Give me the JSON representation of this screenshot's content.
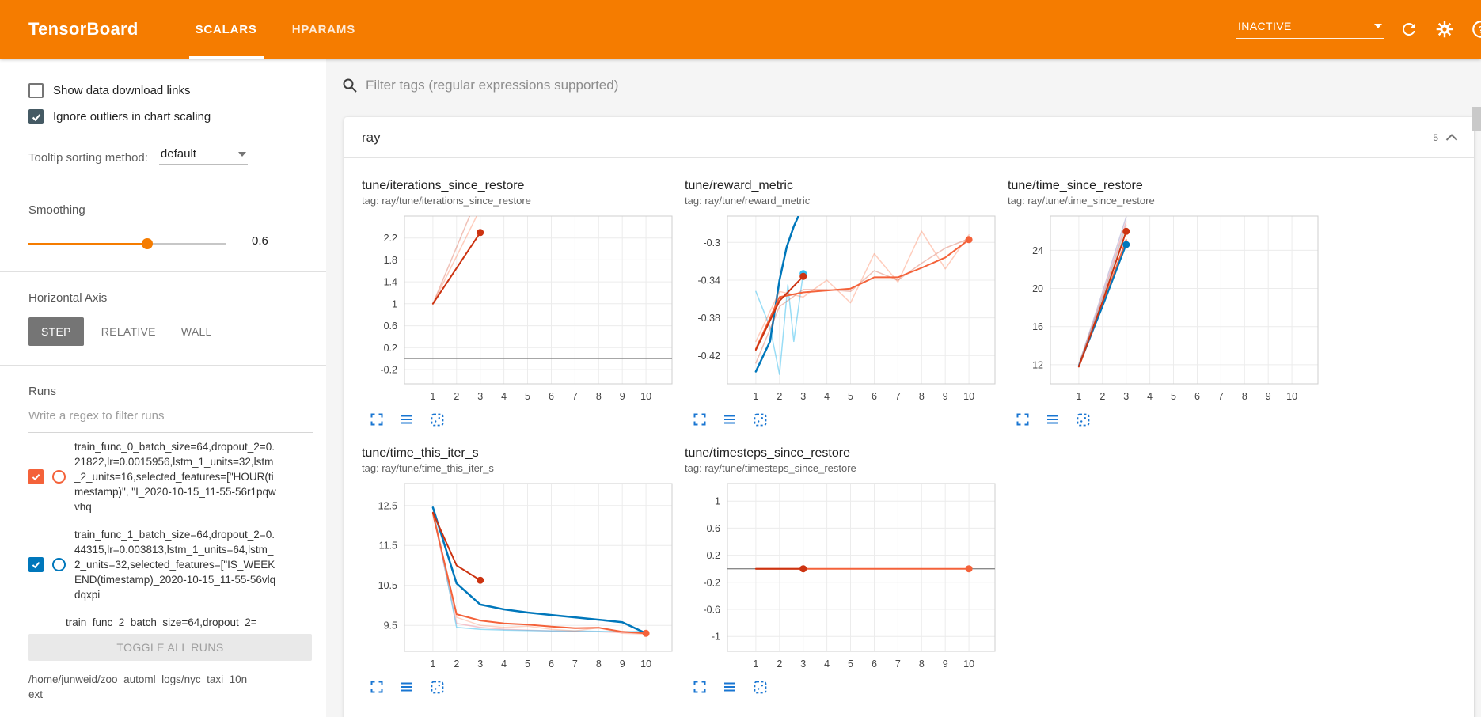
{
  "header": {
    "title": "TensorBoard",
    "tabs": [
      {
        "label": "SCALARS",
        "active": true
      },
      {
        "label": "HPARAMS",
        "active": false
      }
    ],
    "status": "INACTIVE",
    "accent_color": "#f57c00"
  },
  "sidebar": {
    "checkboxes": [
      {
        "label": "Show data download links",
        "checked": false
      },
      {
        "label": "Ignore outliers in chart scaling",
        "checked": true
      }
    ],
    "tooltip_sorting": {
      "label": "Tooltip sorting method:",
      "value": "default"
    },
    "smoothing": {
      "label": "Smoothing",
      "value": "0.6",
      "fraction": 0.6
    },
    "horizontal_axis": {
      "label": "Horizontal Axis",
      "options": [
        "STEP",
        "RELATIVE",
        "WALL"
      ],
      "selected": "STEP"
    },
    "runs": {
      "label": "Runs",
      "filter_placeholder": "Write a regex to filter runs",
      "items": [
        {
          "label": "train_func_0_batch_size=64,dropout_2=0.21822,lr=0.0015956,lstm_1_units=32,lstm_2_units=16,selected_features=[\"HOUR(timestamp)\", \"I_2020-10-15_11-55-56r1pqwvhq",
          "checked": true,
          "color": "#f4623a"
        },
        {
          "label": "train_func_1_batch_size=64,dropout_2=0.44315,lr=0.003813,lstm_1_units=64,lstm_2_units=32,selected_features=[\"IS_WEEKEND(timestamp)_2020-10-15_11-55-56vlqdqxpi",
          "checked": true,
          "color": "#0077bb"
        },
        {
          "label": "train_func_2_batch_size=64,dropout_2="
        }
      ],
      "toggle_all_label": "TOGGLE ALL RUNS",
      "log_path": "/home/junweid/zoo_automl_logs/nyc_taxi_10next"
    }
  },
  "main": {
    "filter_placeholder": "Filter tags (regular expressions supported)",
    "section": {
      "title": "ray",
      "count": "5"
    }
  },
  "chart_data": [
    {
      "type": "line",
      "title": "tune/iterations_since_restore",
      "tag": "tag: ray/tune/iterations_since_restore",
      "xlim": [
        -0.2,
        11.1
      ],
      "ylim": [
        -0.46,
        2.6
      ],
      "xticks": [
        1,
        2,
        3,
        4,
        5,
        6,
        7,
        8,
        9,
        10
      ],
      "yticks": [
        -0.2,
        0.2,
        0.6,
        1,
        1.4,
        1.8,
        2.2
      ],
      "series": [
        {
          "name": "zero-baseline",
          "color": "#8a8a8a",
          "width": 1.4,
          "points": [
            [
              -0.2,
              0
            ],
            [
              11.1,
              0
            ]
          ]
        },
        {
          "name": "run0-raw",
          "color": "#ff7043",
          "opacity": 0.35,
          "width": 1.5,
          "points": [
            [
              1,
              1
            ],
            [
              2.85,
              2.6
            ]
          ]
        },
        {
          "name": "run2-raw",
          "color": "#cc3311",
          "opacity": 0.3,
          "width": 1.5,
          "points": [
            [
              1,
              1
            ],
            [
              2.55,
              2.6
            ]
          ]
        },
        {
          "name": "run2-smoothed",
          "color": "#cc3311",
          "width": 2,
          "dot": true,
          "points": [
            [
              1,
              1
            ],
            [
              3,
              2.3
            ]
          ]
        }
      ]
    },
    {
      "type": "line",
      "title": "tune/reward_metric",
      "tag": "tag: ray/tune/reward_metric",
      "xlim": [
        -0.2,
        11.1
      ],
      "ylim": [
        -0.45,
        -0.272
      ],
      "xticks": [
        1,
        2,
        3,
        4,
        5,
        6,
        7,
        8,
        9,
        10
      ],
      "yticks": [
        -0.42,
        -0.38,
        -0.34,
        -0.3
      ],
      "series": [
        {
          "name": "run1-raw",
          "color": "#33bbee",
          "opacity": 0.5,
          "width": 1.5,
          "dot": true,
          "points": [
            [
              1,
              -0.352
            ],
            [
              1.6,
              -0.39
            ],
            [
              2,
              -0.44
            ],
            [
              2.35,
              -0.345
            ],
            [
              2.6,
              -0.405
            ],
            [
              3,
              -0.333
            ]
          ]
        },
        {
          "name": "run1-smoothed",
          "color": "#0077bb",
          "width": 2.5,
          "points": [
            [
              1,
              -0.437
            ],
            [
              1.6,
              -0.405
            ],
            [
              2,
              -0.34
            ],
            [
              2.3,
              -0.305
            ],
            [
              2.6,
              -0.283
            ],
            [
              2.8,
              -0.272
            ]
          ]
        },
        {
          "name": "run0-raw-a",
          "color": "#ff7043",
          "opacity": 0.35,
          "width": 1.5,
          "points": [
            [
              1,
              -0.405
            ],
            [
              2,
              -0.352
            ],
            [
              3,
              -0.358
            ],
            [
              4,
              -0.34
            ],
            [
              5,
              -0.364
            ],
            [
              6,
              -0.312
            ],
            [
              7,
              -0.342
            ],
            [
              8,
              -0.288
            ],
            [
              9,
              -0.328
            ],
            [
              10,
              -0.292
            ]
          ]
        },
        {
          "name": "run0-raw-b",
          "color": "#cc3311",
          "opacity": 0.3,
          "width": 1.5,
          "points": [
            [
              1,
              -0.428
            ],
            [
              2,
              -0.368
            ],
            [
              3,
              -0.35
            ],
            [
              4,
              -0.35
            ],
            [
              5,
              -0.352
            ],
            [
              6,
              -0.33
            ],
            [
              7,
              -0.34
            ],
            [
              8,
              -0.322
            ],
            [
              9,
              -0.306
            ],
            [
              10,
              -0.296
            ]
          ]
        },
        {
          "name": "run0-smoothed",
          "color": "#f4623a",
          "width": 2,
          "dot": true,
          "points": [
            [
              1,
              -0.413
            ],
            [
              2,
              -0.358
            ],
            [
              3,
              -0.353
            ],
            [
              4,
              -0.351
            ],
            [
              5,
              -0.349
            ],
            [
              6,
              -0.337
            ],
            [
              7,
              -0.337
            ],
            [
              8,
              -0.327
            ],
            [
              9,
              -0.316
            ],
            [
              10,
              -0.297
            ]
          ]
        },
        {
          "name": "run2-smoothed",
          "color": "#cc3311",
          "width": 2,
          "dot": true,
          "points": [
            [
              1,
              -0.414
            ],
            [
              2,
              -0.362
            ],
            [
              3,
              -0.336
            ]
          ]
        }
      ]
    },
    {
      "type": "line",
      "title": "tune/time_since_restore",
      "tag": "tag: ray/tune/time_since_restore",
      "xlim": [
        -0.2,
        11.1
      ],
      "ylim": [
        10,
        27.6
      ],
      "xticks": [
        1,
        2,
        3,
        4,
        5,
        6,
        7,
        8,
        9,
        10
      ],
      "yticks": [
        12,
        16,
        20,
        24
      ],
      "series": [
        {
          "name": "raw-a",
          "color": "#9e9ac8",
          "opacity": 0.5,
          "width": 1.5,
          "points": [
            [
              1,
              12
            ],
            [
              2,
              19.6
            ],
            [
              3,
              27.5
            ]
          ]
        },
        {
          "name": "raw-b",
          "color": "#ee7788",
          "opacity": 0.45,
          "width": 1.5,
          "points": [
            [
              1,
              12
            ],
            [
              2,
              19.2
            ],
            [
              3,
              27
            ]
          ]
        },
        {
          "name": "raw-c",
          "color": "#999999",
          "opacity": 0.45,
          "width": 1.5,
          "points": [
            [
              1,
              12.1
            ],
            [
              2,
              19
            ],
            [
              3,
              26.6
            ]
          ]
        },
        {
          "name": "run0-smoothed",
          "color": "#f4623a",
          "width": 2,
          "points": [
            [
              1,
              11.8
            ],
            [
              2,
              18.2
            ],
            [
              3,
              25.1
            ]
          ]
        },
        {
          "name": "run1-smoothed",
          "color": "#0077bb",
          "width": 2,
          "dot": true,
          "points": [
            [
              1,
              11.9
            ],
            [
              2,
              18.1
            ],
            [
              3,
              24.6
            ]
          ]
        },
        {
          "name": "run2-smoothed",
          "color": "#cc3311",
          "width": 2,
          "dot": true,
          "points": [
            [
              1,
              11.8
            ],
            [
              2,
              18.6
            ],
            [
              3,
              26
            ]
          ]
        }
      ]
    },
    {
      "type": "line",
      "title": "tune/time_this_iter_s",
      "tag": "tag: ray/tune/time_this_iter_s",
      "xlim": [
        -0.2,
        11.1
      ],
      "ylim": [
        8.85,
        13.05
      ],
      "xticks": [
        1,
        2,
        3,
        4,
        5,
        6,
        7,
        8,
        9,
        10
      ],
      "yticks": [
        9.5,
        10.5,
        11.5,
        12.5
      ],
      "series": [
        {
          "name": "raw-pink",
          "color": "#ee99aa",
          "opacity": 0.55,
          "width": 1.5,
          "points": [
            [
              1,
              12.3
            ],
            [
              2,
              9.55
            ],
            [
              3,
              9.45
            ],
            [
              4,
              9.4
            ],
            [
              5,
              9.38
            ],
            [
              6,
              9.36
            ],
            [
              7,
              9.35
            ],
            [
              8,
              9.34
            ],
            [
              9,
              9.32
            ],
            [
              10,
              9.3
            ]
          ]
        },
        {
          "name": "raw-cyan",
          "color": "#33bbee",
          "opacity": 0.5,
          "width": 1.5,
          "points": [
            [
              1,
              12.45
            ],
            [
              2,
              9.45
            ],
            [
              3,
              9.4
            ],
            [
              4,
              9.38
            ],
            [
              5,
              9.37
            ],
            [
              6,
              9.36
            ],
            [
              7,
              9.36
            ],
            [
              8,
              9.35
            ],
            [
              9,
              9.34
            ],
            [
              10,
              9.35
            ]
          ]
        },
        {
          "name": "raw-orange",
          "color": "#ff7043",
          "opacity": 0.3,
          "width": 1.5,
          "points": [
            [
              1,
              12.3
            ],
            [
              2,
              9.7
            ],
            [
              3,
              9.5
            ],
            [
              4,
              9.45
            ],
            [
              5,
              9.48
            ],
            [
              6,
              9.4
            ],
            [
              7,
              9.36
            ],
            [
              8,
              9.44
            ],
            [
              9,
              9.3
            ],
            [
              10,
              9.28
            ]
          ]
        },
        {
          "name": "run1-smoothed",
          "color": "#0077bb",
          "width": 2.5,
          "points": [
            [
              1,
              12.45
            ],
            [
              2,
              10.55
            ],
            [
              3,
              10.02
            ],
            [
              4,
              9.9
            ],
            [
              5,
              9.82
            ],
            [
              6,
              9.76
            ],
            [
              7,
              9.7
            ],
            [
              8,
              9.64
            ],
            [
              9,
              9.58
            ],
            [
              10,
              9.3
            ]
          ]
        },
        {
          "name": "run0-smoothed",
          "color": "#f4623a",
          "width": 2,
          "dot": true,
          "points": [
            [
              1,
              12.3
            ],
            [
              2,
              9.78
            ],
            [
              3,
              9.62
            ],
            [
              4,
              9.55
            ],
            [
              5,
              9.52
            ],
            [
              6,
              9.47
            ],
            [
              7,
              9.43
            ],
            [
              8,
              9.44
            ],
            [
              9,
              9.34
            ],
            [
              10,
              9.3
            ]
          ]
        },
        {
          "name": "run2-smoothed",
          "color": "#cc3311",
          "width": 2,
          "dot": true,
          "points": [
            [
              1,
              12.32
            ],
            [
              2,
              11
            ],
            [
              3,
              10.63
            ]
          ]
        }
      ]
    },
    {
      "type": "line",
      "title": "tune/timesteps_since_restore",
      "tag": "tag: ray/tune/timesteps_since_restore",
      "xlim": [
        -0.2,
        11.1
      ],
      "ylim": [
        -1.22,
        1.26
      ],
      "xticks": [
        1,
        2,
        3,
        4,
        5,
        6,
        7,
        8,
        9,
        10
      ],
      "yticks": [
        -1,
        -0.6,
        -0.2,
        0.2,
        0.6,
        1
      ],
      "series": [
        {
          "name": "zero-baseline",
          "color": "#8a8a8a",
          "width": 1.4,
          "points": [
            [
              -0.2,
              0
            ],
            [
              11.1,
              0
            ]
          ]
        },
        {
          "name": "run0-smoothed",
          "color": "#f4623a",
          "width": 2,
          "dot": true,
          "points": [
            [
              1,
              0
            ],
            [
              10,
              0
            ]
          ]
        },
        {
          "name": "run2-smoothed",
          "color": "#cc3311",
          "width": 2,
          "dot": true,
          "points": [
            [
              1,
              0
            ],
            [
              3,
              0
            ]
          ]
        }
      ]
    }
  ]
}
